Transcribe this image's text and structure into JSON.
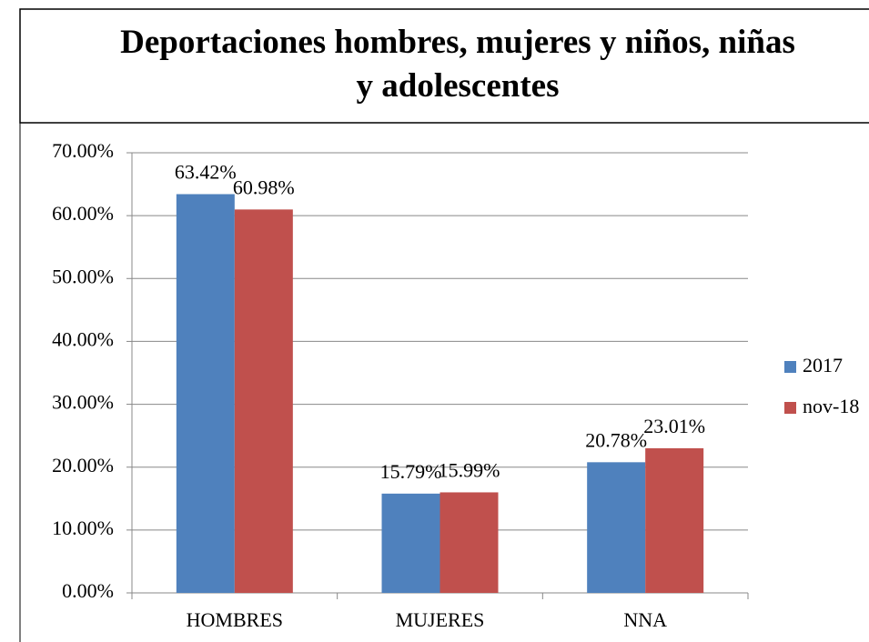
{
  "chart_data": {
    "type": "bar",
    "title": "Deportaciones hombres, mujeres y niños, niñas y adolescentes",
    "categories": [
      "HOMBRES",
      "MUJERES",
      "NNA"
    ],
    "series": [
      {
        "name": "2017",
        "color": "#4f81bd",
        "values": [
          63.42,
          15.79,
          20.78
        ],
        "value_labels": [
          "63.42%",
          "15.79%",
          "20.78%"
        ]
      },
      {
        "name": "nov-18",
        "color": "#c0504d",
        "values": [
          60.98,
          15.99,
          23.01
        ],
        "value_labels": [
          "60.98%",
          "15.99%",
          "23.01%"
        ]
      }
    ],
    "ylim": [
      0,
      70
    ],
    "yticks": [
      {
        "value": 0,
        "label": "0.00%"
      },
      {
        "value": 10,
        "label": "10.00%"
      },
      {
        "value": 20,
        "label": "20.00%"
      },
      {
        "value": 30,
        "label": "30.00%"
      },
      {
        "value": 40,
        "label": "40.00%"
      },
      {
        "value": 50,
        "label": "50.00%"
      },
      {
        "value": 60,
        "label": "60.00%"
      },
      {
        "value": 70,
        "label": "70.00%"
      }
    ],
    "grid": true,
    "legend": "right"
  }
}
